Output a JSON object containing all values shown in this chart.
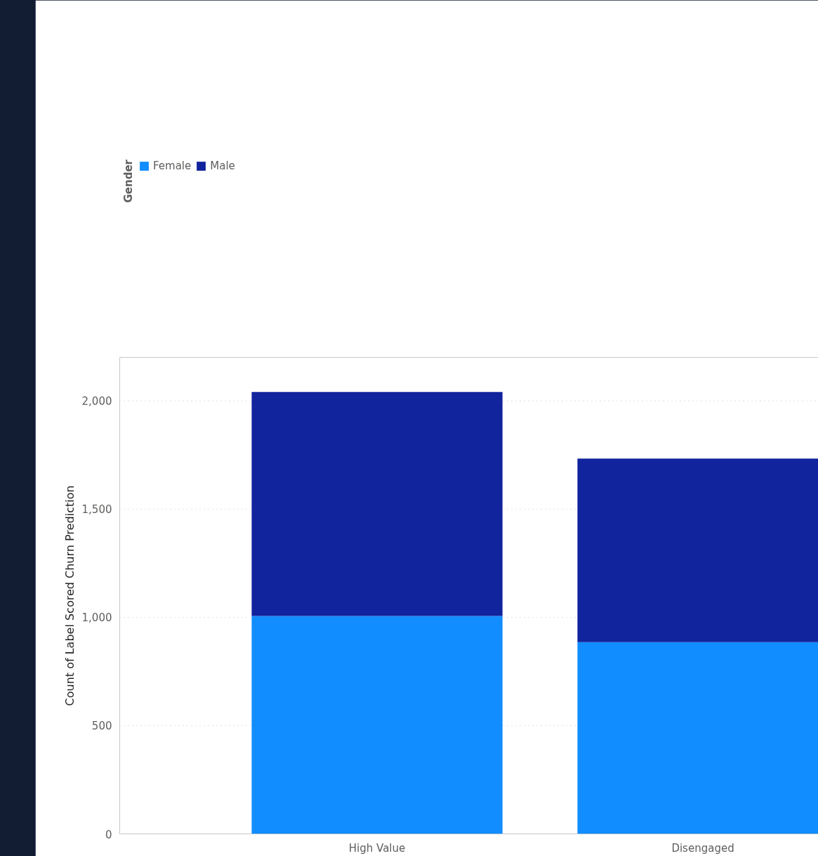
{
  "chart_data": {
    "type": "bar",
    "stacked": true,
    "categories": [
      "High Value",
      "Disengaged"
    ],
    "series": [
      {
        "name": "Female",
        "color": "#118dff",
        "values": [
          1006,
          885
        ]
      },
      {
        "name": "Male",
        "color": "#12239e",
        "values": [
          1034,
          848
        ]
      }
    ],
    "ylabel": "Count of Label Scored Churn Prediction",
    "legend_title": "Gender",
    "legend": "top left",
    "ylim": [
      0,
      2200
    ],
    "yticks": [
      0,
      500,
      {
        "value": 1000,
        "label": "1,000"
      },
      {
        "value": 1500,
        "label": "1,500"
      },
      {
        "value": 2000,
        "label": "2,000"
      }
    ],
    "grid": "y"
  }
}
